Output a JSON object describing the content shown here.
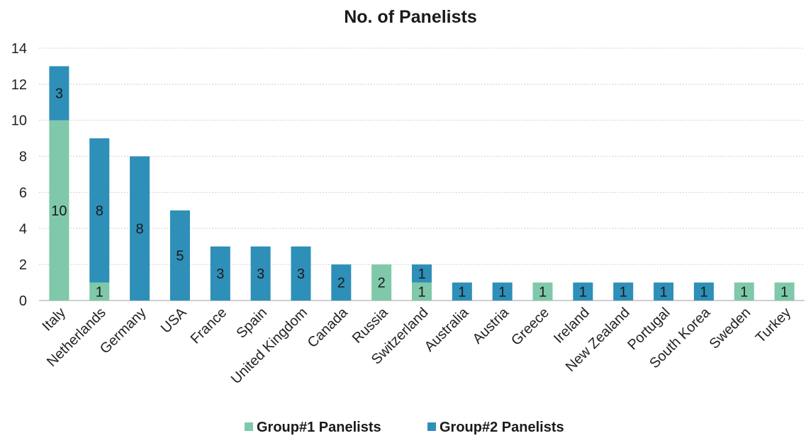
{
  "chart_data": {
    "type": "bar",
    "stacked": true,
    "title": "No. of Panelists",
    "xlabel": "",
    "ylabel": "",
    "ylim": [
      0,
      14
    ],
    "yticks": [
      0,
      2,
      4,
      6,
      8,
      10,
      12,
      14
    ],
    "grid": true,
    "legend_position": "bottom",
    "categories": [
      "Italy",
      "Netherlands",
      "Germany",
      "USA",
      "France",
      "Spain",
      "United Kingdom",
      "Canada",
      "Russia",
      "Switzerland",
      "Australia",
      "Austria",
      "Greece",
      "Ireland",
      "New Zealand",
      "Portugal",
      "South Korea",
      "Sweden",
      "Turkey"
    ],
    "series": [
      {
        "name": "Group#1 Panelists",
        "color": "#7fc8a9",
        "values": [
          10,
          1,
          0,
          0,
          0,
          0,
          0,
          0,
          2,
          1,
          0,
          0,
          1,
          0,
          0,
          0,
          0,
          1,
          1
        ]
      },
      {
        "name": "Group#2 Panelists",
        "color": "#2e8fb8",
        "values": [
          3,
          8,
          8,
          5,
          3,
          3,
          3,
          2,
          0,
          1,
          1,
          1,
          0,
          1,
          1,
          1,
          1,
          0,
          0
        ]
      }
    ]
  }
}
